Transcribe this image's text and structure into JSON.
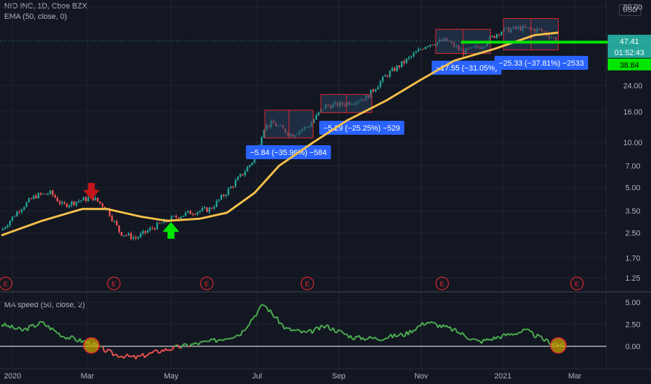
{
  "header": {
    "symbol_line": "NIO INC, 1D, Cboe BZX",
    "indicator_line": "EMA (50, close, 0)",
    "currency_button": "USD"
  },
  "lower_pane": {
    "indicator_line": "MA speed (50, close, 2)"
  },
  "price_scale": {
    "current_price": "47.41",
    "countdown": "01:52:43",
    "support_level": "38.84"
  },
  "colors": {
    "background": "#131722",
    "candle_up": "#26a69a",
    "candle_down": "#ef5350",
    "ema": "#f7c04a",
    "ma_speed_up": "#4caf50",
    "ma_speed_down": "#ef5350",
    "support_line": "#00e600",
    "box_border": "#e0282e",
    "box_fill": "#2a3f5f",
    "label_bg": "#2962ff",
    "arrow_up": "#00e600",
    "arrow_down": "#c0161c"
  },
  "chart_data": [
    {
      "type": "candlestick",
      "scale": "log",
      "y_ticks": [
        "80.00",
        "47.41",
        "24.00",
        "16.00",
        "10.00",
        "7.00",
        "5.00",
        "3.50",
        "2.50",
        "1.70",
        "1.25"
      ],
      "y_tick_values": [
        80,
        47.41,
        24,
        16,
        10,
        7,
        5,
        3.5,
        2.5,
        1.7,
        1.25
      ],
      "x_ticks": [
        "2020",
        "Mar",
        "May",
        "Jul",
        "Sep",
        "Nov",
        "2021",
        "Mar"
      ],
      "x_tick_dates": [
        "2020-01-01",
        "2020-03-01",
        "2020-05-01",
        "2020-07-01",
        "2020-09-01",
        "2020-11-01",
        "2021-01-01",
        "2021-03-01"
      ],
      "price_path": [
        {
          "date": "2019-12-20",
          "close": 2.6
        },
        {
          "date": "2020-01-03",
          "close": 3.6
        },
        {
          "date": "2020-01-15",
          "close": 4.4
        },
        {
          "date": "2020-01-27",
          "close": 4.6
        },
        {
          "date": "2020-02-05",
          "close": 3.8
        },
        {
          "date": "2020-02-18",
          "close": 4.1
        },
        {
          "date": "2020-02-28",
          "close": 4.3
        },
        {
          "date": "2020-03-10",
          "close": 3.6
        },
        {
          "date": "2020-03-20",
          "close": 2.5
        },
        {
          "date": "2020-04-01",
          "close": 2.3
        },
        {
          "date": "2020-04-14",
          "close": 2.7
        },
        {
          "date": "2020-04-28",
          "close": 3.1
        },
        {
          "date": "2020-05-12",
          "close": 3.4
        },
        {
          "date": "2020-05-28",
          "close": 3.6
        },
        {
          "date": "2020-06-08",
          "close": 4.5
        },
        {
          "date": "2020-06-22",
          "close": 6.2
        },
        {
          "date": "2020-07-01",
          "close": 7.8
        },
        {
          "date": "2020-07-08",
          "close": 12.5
        },
        {
          "date": "2020-07-15",
          "close": 13.5
        },
        {
          "date": "2020-07-29",
          "close": 11.2
        },
        {
          "date": "2020-08-12",
          "close": 13.0
        },
        {
          "date": "2020-08-24",
          "close": 17.5
        },
        {
          "date": "2020-09-07",
          "close": 18.0
        },
        {
          "date": "2020-09-25",
          "close": 20.0
        },
        {
          "date": "2020-10-10",
          "close": 28.0
        },
        {
          "date": "2020-10-25",
          "close": 35.0
        },
        {
          "date": "2020-11-10",
          "close": 45.0
        },
        {
          "date": "2020-11-25",
          "close": 48.0
        },
        {
          "date": "2020-12-08",
          "close": 40.0
        },
        {
          "date": "2020-12-22",
          "close": 44.0
        },
        {
          "date": "2021-01-05",
          "close": 55.0
        },
        {
          "date": "2021-01-20",
          "close": 58.0
        },
        {
          "date": "2021-02-05",
          "close": 56.0
        },
        {
          "date": "2021-02-19",
          "close": 47.41
        }
      ],
      "ema_path": [
        {
          "date": "2019-12-20",
          "value": 2.4
        },
        {
          "date": "2020-01-20",
          "value": 3.0
        },
        {
          "date": "2020-02-20",
          "value": 3.6
        },
        {
          "date": "2020-03-10",
          "value": 3.6
        },
        {
          "date": "2020-04-05",
          "value": 3.2
        },
        {
          "date": "2020-04-25",
          "value": 3.0
        },
        {
          "date": "2020-05-20",
          "value": 3.1
        },
        {
          "date": "2020-06-10",
          "value": 3.4
        },
        {
          "date": "2020-07-01",
          "value": 4.6
        },
        {
          "date": "2020-07-20",
          "value": 7.0
        },
        {
          "date": "2020-08-15",
          "value": 10.0
        },
        {
          "date": "2020-09-10",
          "value": 14.0
        },
        {
          "date": "2020-10-10",
          "value": 19.0
        },
        {
          "date": "2020-11-05",
          "value": 26.0
        },
        {
          "date": "2020-12-01",
          "value": 35.0
        },
        {
          "date": "2021-01-01",
          "value": 42.0
        },
        {
          "date": "2021-02-01",
          "value": 52.0
        },
        {
          "date": "2021-02-19",
          "value": 54.0
        }
      ],
      "drawdown_boxes": [
        {
          "from": "2020-07-09",
          "to": "2020-08-15",
          "high": 16.4,
          "low": 10.7,
          "label": "−5.84 (−35.96%) −584"
        },
        {
          "from": "2020-08-21",
          "to": "2020-09-29",
          "high": 20.9,
          "low": 15.8,
          "label": "−5.29 (−25.25%) −529"
        },
        {
          "from": "2020-11-17",
          "to": "2020-12-29",
          "high": 56.8,
          "low": 39.2,
          "label": "−17.55 (−31.05%)"
        },
        {
          "from": "2021-01-08",
          "to": "2021-02-19",
          "high": 67.0,
          "low": 41.4,
          "label": "−25.33 (−37.81%) −2533"
        }
      ],
      "signals": [
        {
          "type": "sell",
          "date": "2020-02-27"
        },
        {
          "type": "buy",
          "date": "2020-04-28"
        }
      ],
      "earnings_markers": [
        "2019-12-31",
        "2020-03-18",
        "2020-04-27",
        "2020-07-19",
        "2020-08-27",
        "2020-11-16",
        "2021-03-01"
      ],
      "earnings_label": "E",
      "support_level": 38.84
    },
    {
      "type": "line",
      "name": "MA speed",
      "y_ticks": [
        "5.00",
        "2.50",
        "0.00"
      ],
      "y_tick_values": [
        5,
        2.5,
        0
      ],
      "x": [
        "2019-12-20",
        "2020-01-05",
        "2020-01-20",
        "2020-02-05",
        "2020-02-27",
        "2020-03-15",
        "2020-04-01",
        "2020-04-20",
        "2020-05-10",
        "2020-05-30",
        "2020-06-20",
        "2020-07-08",
        "2020-07-25",
        "2020-08-10",
        "2020-08-25",
        "2020-09-15",
        "2020-10-05",
        "2020-10-25",
        "2020-11-10",
        "2020-11-30",
        "2020-12-20",
        "2021-01-08",
        "2021-01-25",
        "2021-02-10",
        "2021-02-22"
      ],
      "values": [
        2.5,
        1.8,
        2.7,
        1.2,
        0.3,
        -0.9,
        -1.3,
        -0.5,
        0.1,
        0.6,
        1.4,
        4.8,
        2.0,
        1.5,
        2.3,
        1.0,
        0.9,
        1.4,
        2.8,
        1.9,
        0.5,
        1.2,
        1.8,
        0.6,
        0.05
      ],
      "highlight_dates": [
        "2020-02-27",
        "2021-02-19"
      ]
    }
  ]
}
